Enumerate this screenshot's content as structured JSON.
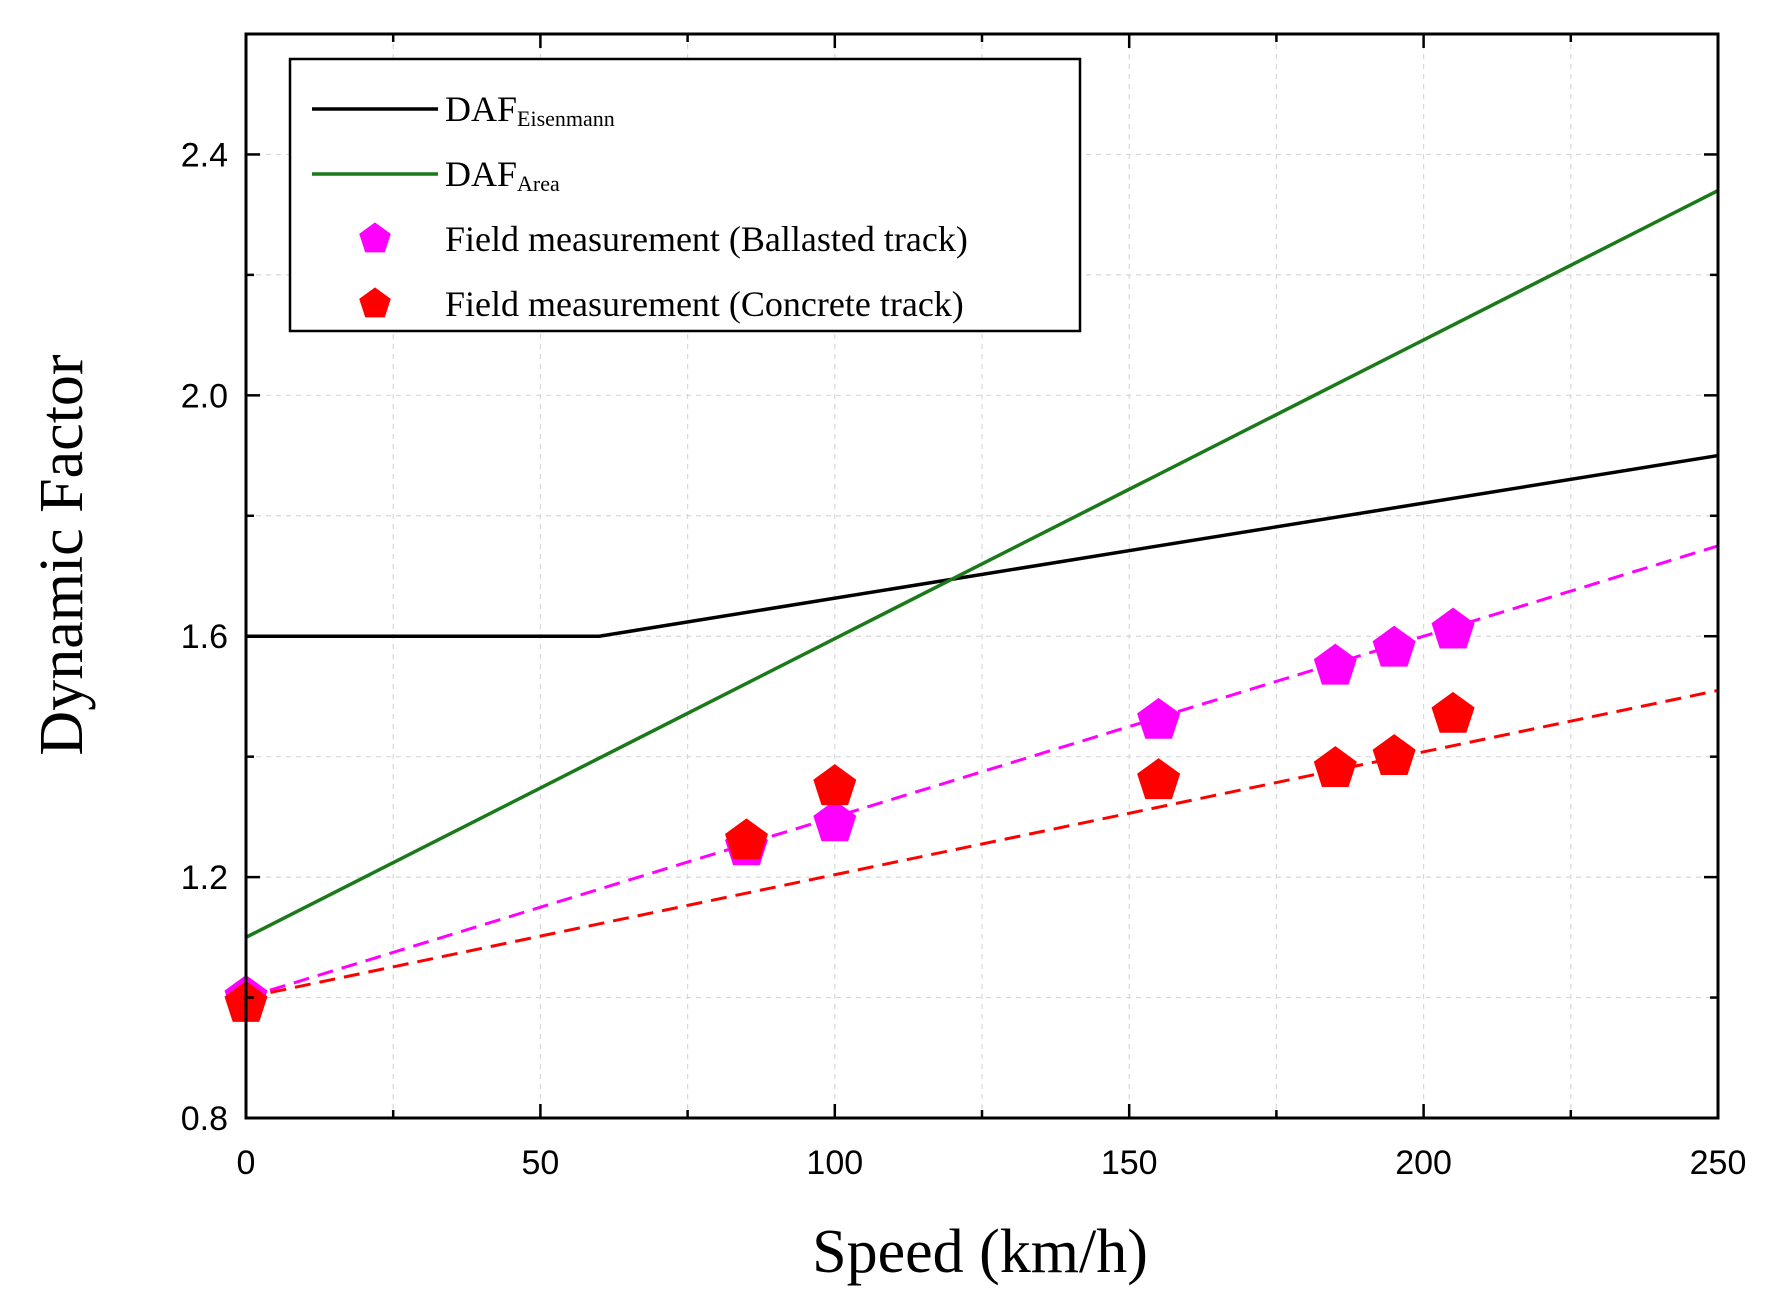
{
  "chart_data": {
    "type": "line",
    "title": "",
    "xlabel": "Speed (km/h)",
    "ylabel": "Dynamic Factor",
    "xlim": [
      0,
      250
    ],
    "ylim": [
      0.8,
      2.6
    ],
    "x_ticks": [
      0,
      50,
      100,
      150,
      200,
      250
    ],
    "x_tick_labels": [
      "0",
      "50",
      "100",
      "150",
      "200",
      "250"
    ],
    "y_ticks": [
      0.8,
      1.2,
      1.6,
      2.0,
      2.4
    ],
    "y_tick_labels": [
      "0.8",
      "1.2",
      "1.6",
      "2.0",
      "2.4"
    ],
    "grid": true,
    "legend_position": "top-left",
    "series": [
      {
        "name": "DAF Eisenmann",
        "legend_main": "DAF",
        "legend_sub": "Eisenmann",
        "kind": "line",
        "style": "solid",
        "color": "#000000",
        "x": [
          0,
          60,
          250
        ],
        "y": [
          1.6,
          1.6,
          1.9
        ]
      },
      {
        "name": "DAF Area",
        "legend_main": "DAF",
        "legend_sub": "Area",
        "kind": "line",
        "style": "solid",
        "color": "#1a7a1a",
        "x": [
          0,
          250
        ],
        "y": [
          1.1,
          2.34
        ]
      },
      {
        "name": "Field measurement (Ballasted track)",
        "legend_main": "Field measurement (Ballasted track)",
        "legend_sub": "",
        "kind": "scatter",
        "marker": "pentagon",
        "color": "#ff00ff",
        "x": [
          0,
          85,
          100,
          155,
          185,
          195,
          205
        ],
        "y": [
          1.0,
          1.25,
          1.29,
          1.46,
          1.55,
          1.58,
          1.61
        ]
      },
      {
        "name": "Field measurement (Concrete track)",
        "legend_main": "Field measurement (Concrete track)",
        "legend_sub": "",
        "kind": "scatter",
        "marker": "pentagon",
        "color": "#ff0000",
        "x": [
          0,
          85,
          100,
          155,
          185,
          195,
          205
        ],
        "y": [
          0.99,
          1.26,
          1.35,
          1.36,
          1.38,
          1.4,
          1.47
        ]
      }
    ],
    "trendlines": [
      {
        "name": "Ballasted track fit",
        "style": "dashed",
        "color": "#ff00ff",
        "x": [
          0,
          250
        ],
        "y": [
          1.0,
          1.75
        ]
      },
      {
        "name": "Concrete track fit",
        "style": "dashed",
        "color": "#ff0000",
        "x": [
          0,
          250
        ],
        "y": [
          1.0,
          1.51
        ]
      }
    ]
  }
}
